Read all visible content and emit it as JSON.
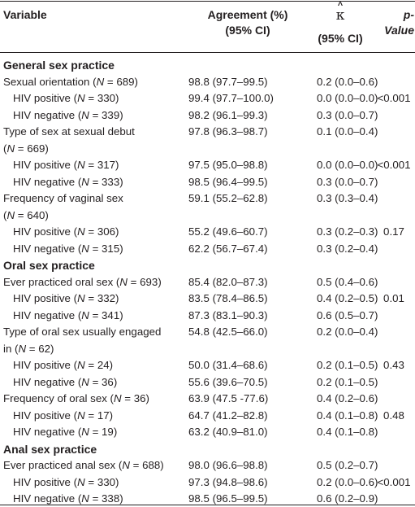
{
  "header": {
    "variable": "Variable",
    "agreement_line1": "Agreement (%)",
    "agreement_line2": "(95% CI)",
    "kappa_hat": "^",
    "kappa_symbol": "κ",
    "kappa_ci": "(95% CI)",
    "p_value": "p-Value"
  },
  "rows": [
    {
      "type": "section",
      "label": "General sex practice"
    },
    {
      "type": "main",
      "pre": "Sexual orientation (",
      "n": "N",
      "post": " = 689)",
      "agree": "98.8 (97.7–99.5)",
      "kappa": "0.2 (0.0–0.6)",
      "p": ""
    },
    {
      "type": "sub",
      "pre": "HIV positive (",
      "n": "N",
      "post": " = 330)",
      "agree": "99.4 (97.7–100.0)",
      "kappa": "0.0 (0.0–0.0)",
      "p": "<0.001"
    },
    {
      "type": "sub",
      "pre": "HIV negative (",
      "n": "N",
      "post": " = 339)",
      "agree": "98.2 (96.1–99.3)",
      "kappa": "0.3 (0.0–0.7)",
      "p": ""
    },
    {
      "type": "main",
      "pre": "Type of sex at sexual debut",
      "n": "",
      "post": "",
      "agree": "97.8 (96.3–98.7)",
      "kappa": "0.1 (0.0–0.4)",
      "p": ""
    },
    {
      "type": "main",
      "pre": "(",
      "n": "N",
      "post": " = 669)",
      "agree": "",
      "kappa": "",
      "p": ""
    },
    {
      "type": "sub",
      "pre": "HIV positive (",
      "n": "N",
      "post": " = 317)",
      "agree": "97.5 (95.0–98.8)",
      "kappa": "0.0 (0.0–0.0)",
      "p": "<0.001"
    },
    {
      "type": "sub",
      "pre": "HIV negative (",
      "n": "N",
      "post": " = 333)",
      "agree": "98.5 (96.4–99.5)",
      "kappa": "0.3 (0.0–0.7)",
      "p": ""
    },
    {
      "type": "main",
      "pre": "Frequency of vaginal sex",
      "n": "",
      "post": "",
      "agree": "59.1 (55.2–62.8)",
      "kappa": "0.3 (0.3–0.4)",
      "p": ""
    },
    {
      "type": "main",
      "pre": "(",
      "n": "N",
      "post": " = 640)",
      "agree": "",
      "kappa": "",
      "p": ""
    },
    {
      "type": "sub",
      "pre": "HIV positive (",
      "n": "N",
      "post": " = 306)",
      "agree": "55.2 (49.6–60.7)",
      "kappa": "0.3 (0.2–0.3)",
      "p": "0.17"
    },
    {
      "type": "sub",
      "pre": "HIV negative (",
      "n": "N",
      "post": " = 315)",
      "agree": "62.2 (56.7–67.4)",
      "kappa": "0.3 (0.2–0.4)",
      "p": ""
    },
    {
      "type": "section",
      "label": "Oral sex practice"
    },
    {
      "type": "main",
      "pre": "Ever practiced oral sex (",
      "n": "N",
      "post": " = 693)",
      "agree": "85.4 (82.0–87.3)",
      "kappa": "0.5 (0.4–0.6)",
      "p": ""
    },
    {
      "type": "sub",
      "pre": "HIV positive (",
      "n": "N",
      "post": " = 332)",
      "agree": "83.5 (78.4–86.5)",
      "kappa": "0.4 (0.2–0.5)",
      "p": "0.01"
    },
    {
      "type": "sub",
      "pre": "HIV negative (",
      "n": "N",
      "post": " = 341)",
      "agree": "87.3 (83.1–90.3)",
      "kappa": "0.6 (0.5–0.7)",
      "p": ""
    },
    {
      "type": "main",
      "pre": "Type of oral sex usually engaged",
      "n": "",
      "post": "",
      "agree": "54.8 (42.5–66.0)",
      "kappa": "0.2 (0.0–0.4)",
      "p": ""
    },
    {
      "type": "main",
      "pre": "in (",
      "n": "N",
      "post": " = 62)",
      "agree": "",
      "kappa": "",
      "p": ""
    },
    {
      "type": "sub",
      "pre": "HIV positive (",
      "n": "N",
      "post": " = 24)",
      "agree": "50.0 (31.4–68.6)",
      "kappa": "0.2 (0.1–0.5)",
      "p": "0.43"
    },
    {
      "type": "sub",
      "pre": "HIV negative (",
      "n": "N",
      "post": " = 36)",
      "agree": "55.6 (39.6–70.5)",
      "kappa": "0.2 (0.1–0.5)",
      "p": ""
    },
    {
      "type": "main",
      "pre": "Frequency of oral sex (",
      "n": "N",
      "post": " = 36)",
      "agree": "63.9 (47.5 -77.6)",
      "kappa": "0.4 (0.2–0.6)",
      "p": ""
    },
    {
      "type": "sub",
      "pre": "HIV positive (",
      "n": "N",
      "post": " = 17)",
      "agree": "64.7 (41.2–82.8)",
      "kappa": "0.4 (0.1–0.8)",
      "p": "0.48"
    },
    {
      "type": "sub",
      "pre": "HIV negative (",
      "n": "N",
      "post": " = 19)",
      "agree": "63.2 (40.9–81.0)",
      "kappa": "0.4 (0.1–0.8)",
      "p": ""
    },
    {
      "type": "section",
      "label": "Anal sex practice"
    },
    {
      "type": "main",
      "pre": "Ever practiced anal sex (",
      "n": "N",
      "post": " = 688)",
      "agree": "98.0 (96.6–98.8)",
      "kappa": "0.5 (0.2–0.7)",
      "p": ""
    },
    {
      "type": "sub",
      "pre": "HIV positive (",
      "n": "N",
      "post": " = 330)",
      "agree": "97.3 (94.8–98.6)",
      "kappa": "0.2 (0.0–0.6)",
      "p": "<0.001"
    },
    {
      "type": "sub",
      "pre": "HIV negative (",
      "n": "N",
      "post": " = 338)",
      "agree": "98.5 (96.5–99.5)",
      "kappa": "0.6 (0.2–0.9)",
      "p": ""
    }
  ]
}
